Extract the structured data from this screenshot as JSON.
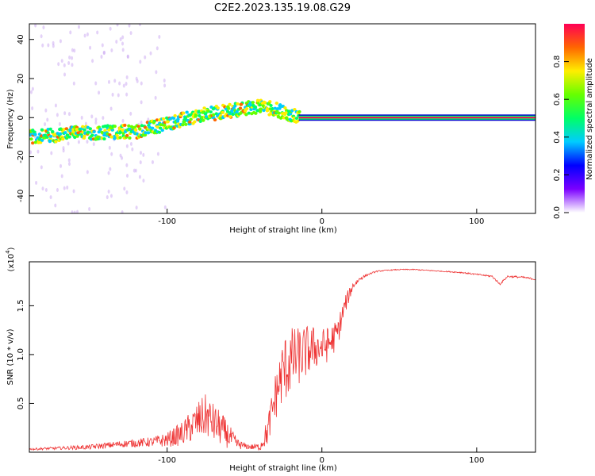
{
  "title": "C2E2.2023.135.19.08.G29",
  "chart_data": [
    {
      "type": "heatmap",
      "xlabel": "Height of straight line (km)",
      "ylabel": "Frequency (Hz)",
      "xlim": [
        -189,
        138
      ],
      "ylim": [
        -49,
        48
      ],
      "x_ticks": [
        -100,
        0,
        100
      ],
      "y_ticks": [
        -40,
        -20,
        0,
        20,
        40
      ],
      "ridge": {
        "x": [
          -189,
          -160,
          -140,
          -120,
          -100,
          -80,
          -60,
          -40,
          -30,
          -20,
          -10,
          0,
          138
        ],
        "y": [
          -10,
          -8,
          -7.5,
          -7,
          -3,
          1,
          3.5,
          6,
          4,
          1,
          0,
          0,
          0
        ]
      },
      "colorbar": {
        "label": "Normalized spectral amplitude",
        "range": [
          0,
          1
        ],
        "ticks": [
          "0.0",
          "0.2",
          "0.4",
          "0.6",
          "0.8"
        ],
        "colors": [
          "#ffffff",
          "#7b00ff",
          "#0000ff",
          "#00ccff",
          "#00ff66",
          "#66ff00",
          "#ffee00",
          "#ff6600",
          "#ff0055"
        ]
      }
    },
    {
      "type": "line",
      "xlabel": "Height of straight line (km)",
      "ylabel": "SNR (10 * v/v)",
      "multiplier_label": "(x10",
      "multiplier_exp": "4",
      "xlim": [
        -189,
        138
      ],
      "ylim": [
        0,
        1.95
      ],
      "x_ticks": [
        -100,
        0,
        100
      ],
      "y_ticks": [
        "0.5",
        "1.0",
        "1.5"
      ],
      "line_color": "#ee3333",
      "series": [
        {
          "name": "SNR",
          "x": [
            -189,
            -170,
            -150,
            -130,
            -110,
            -100,
            -90,
            -80,
            -75,
            -70,
            -65,
            -60,
            -55,
            -50,
            -45,
            -40,
            -35,
            -30,
            -25,
            -20,
            -15,
            -10,
            -5,
            0,
            5,
            10,
            15,
            20,
            25,
            30,
            35,
            40,
            50,
            60,
            70,
            80,
            90,
            100,
            110,
            115,
            120,
            130,
            138
          ],
          "y": [
            0.03,
            0.04,
            0.05,
            0.08,
            0.1,
            0.12,
            0.18,
            0.3,
            0.35,
            0.28,
            0.22,
            0.15,
            0.08,
            0.06,
            0.05,
            0.05,
            0.2,
            0.55,
            0.8,
            0.9,
            0.95,
            1.0,
            1.05,
            1.05,
            1.1,
            1.2,
            1.5,
            1.7,
            1.78,
            1.82,
            1.85,
            1.86,
            1.87,
            1.87,
            1.86,
            1.85,
            1.84,
            1.82,
            1.8,
            1.72,
            1.8,
            1.79,
            1.77
          ],
          "noise": [
            0.02,
            0.03,
            0.05,
            0.07,
            0.1,
            0.15,
            0.25,
            0.4,
            0.45,
            0.4,
            0.35,
            0.25,
            0.12,
            0.06,
            0.06,
            0.08,
            0.3,
            0.5,
            0.7,
            0.7,
            0.6,
            0.55,
            0.45,
            0.4,
            0.35,
            0.3,
            0.2,
            0.08,
            0.04,
            0.02,
            0.015,
            0.01,
            0.01,
            0.01,
            0.01,
            0.01,
            0.015,
            0.015,
            0.02,
            0.02,
            0.02,
            0.02,
            0.02
          ]
        }
      ]
    }
  ]
}
